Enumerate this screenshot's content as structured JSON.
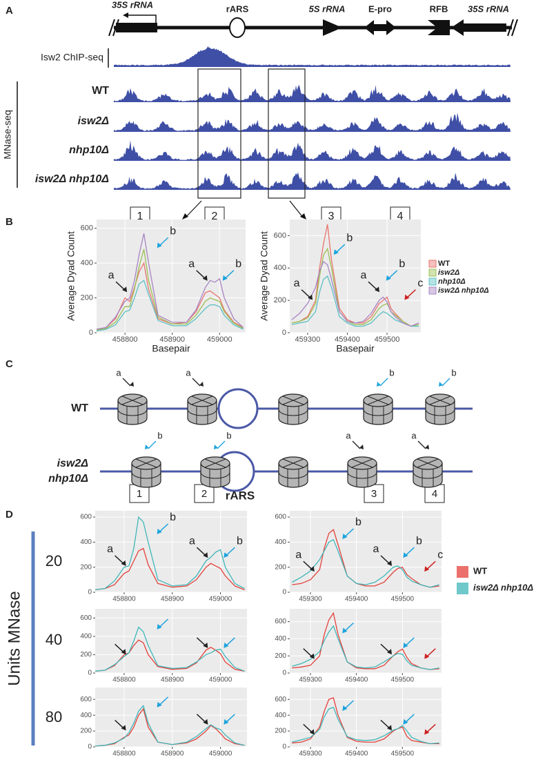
{
  "panels": [
    "A",
    "B",
    "C",
    "D"
  ],
  "panel_a": {
    "features": [
      "35S rRNA",
      "rARS",
      "5S rRNA",
      "E-pro",
      "RFB",
      "35S rRNA"
    ],
    "chip_label": "Isw2 ChIP-seq",
    "mnase_label": "MNase-seq",
    "tracks": [
      "WT",
      "isw2Δ",
      "nhp10Δ",
      "isw2Δ nhp10Δ"
    ]
  },
  "panel_b": {
    "boxes": [
      "1",
      "2",
      "3",
      "4"
    ]
  },
  "panel_c": {
    "rows": [
      {
        "label": "WT",
        "marks": [
          "a",
          "a",
          "b",
          "b"
        ]
      },
      {
        "label": "isw2Δ nhp10Δ",
        "marks": [
          "b",
          "b",
          "a",
          "a"
        ]
      }
    ],
    "boxes": [
      "1",
      "2",
      "3",
      "4"
    ],
    "origin": "rARS"
  },
  "panel_d": {
    "axis_label": "Units MNase",
    "units": [
      20,
      40,
      80
    ]
  },
  "chart_data": [
    {
      "type": "line",
      "xlabel": "Basepair",
      "ylabel": "Average Dyad Count",
      "x": [
        458740,
        458760,
        458780,
        458800,
        458810,
        458820,
        458830,
        458840,
        458850,
        458870,
        458900,
        458930,
        458950,
        458970,
        458980,
        458990,
        459000,
        459010,
        459030,
        459050
      ],
      "series": [
        {
          "name": "WT",
          "color": "#e8736c",
          "values": [
            20,
            30,
            80,
            200,
            180,
            260,
            350,
            400,
            250,
            80,
            50,
            60,
            120,
            230,
            240,
            220,
            200,
            130,
            60,
            30
          ]
        },
        {
          "name": "isw2Δ",
          "color": "#9bbf52",
          "values": [
            15,
            25,
            60,
            150,
            150,
            250,
            380,
            480,
            300,
            90,
            50,
            50,
            100,
            180,
            200,
            190,
            180,
            120,
            55,
            25
          ]
        },
        {
          "name": "nhp10Δ",
          "color": "#5bbfc4",
          "values": [
            10,
            20,
            45,
            120,
            130,
            200,
            280,
            300,
            220,
            70,
            40,
            40,
            80,
            140,
            160,
            160,
            150,
            100,
            45,
            20
          ]
        },
        {
          "name": "isw2Δ nhp10Δ",
          "color": "#a783c4",
          "values": [
            20,
            30,
            90,
            180,
            200,
            300,
            450,
            570,
            400,
            100,
            60,
            60,
            130,
            260,
            300,
            290,
            310,
            200,
            80,
            30
          ]
        }
      ],
      "xlim": [
        458740,
        459055
      ],
      "xticks": [
        458800,
        458900,
        459000
      ],
      "ylim": [
        0,
        650
      ],
      "yticks": [
        0,
        200,
        400,
        600
      ],
      "grid": true,
      "annotations": [
        "a",
        "b",
        "a",
        "b"
      ],
      "arrow_colors": [
        "#222222",
        "#1ba3dd",
        "#222222",
        "#1ba3dd"
      ]
    },
    {
      "type": "line",
      "xlabel": "Basepair",
      "ylabel": "Average Dyad Count",
      "x": [
        459260,
        459280,
        459300,
        459320,
        459330,
        459340,
        459350,
        459360,
        459380,
        459400,
        459420,
        459440,
        459460,
        459480,
        459490,
        459500,
        459510,
        459520,
        459540,
        459560,
        459580
      ],
      "series": [
        {
          "name": "WT",
          "color": "#e8736c",
          "values": [
            60,
            70,
            100,
            200,
            400,
            550,
            670,
            450,
            150,
            80,
            60,
            60,
            100,
            180,
            200,
            220,
            150,
            120,
            70,
            40,
            50
          ]
        },
        {
          "name": "isw2Δ",
          "color": "#9bbf52",
          "values": [
            60,
            70,
            90,
            180,
            350,
            480,
            520,
            400,
            130,
            70,
            50,
            50,
            80,
            150,
            170,
            180,
            130,
            110,
            70,
            40,
            50
          ]
        },
        {
          "name": "nhp10Δ",
          "color": "#5bbfc4",
          "values": [
            50,
            60,
            70,
            130,
            250,
            330,
            350,
            280,
            100,
            60,
            40,
            40,
            60,
            110,
            130,
            120,
            100,
            80,
            60,
            40,
            40
          ]
        },
        {
          "name": "isw2Δ nhp10Δ",
          "color": "#a783c4",
          "values": [
            80,
            120,
            180,
            280,
            380,
            440,
            420,
            330,
            130,
            70,
            60,
            70,
            120,
            200,
            220,
            190,
            130,
            100,
            60,
            40,
            60
          ]
        }
      ],
      "xlim": [
        459255,
        459585
      ],
      "xticks": [
        459300,
        459400,
        459500
      ],
      "ylim": [
        0,
        700
      ],
      "yticks": [
        0,
        200,
        400,
        600
      ],
      "grid": true,
      "annotations": [
        "a",
        "b",
        "a",
        "b",
        "c"
      ],
      "arrow_colors": [
        "#222222",
        "#1ba3dd",
        "#222222",
        "#1ba3dd",
        "#cc2222"
      ]
    },
    {
      "type": "line",
      "x": [
        458740,
        458760,
        458780,
        458800,
        458810,
        458820,
        458830,
        458840,
        458850,
        458870,
        458900,
        458930,
        458950,
        458970,
        458980,
        458990,
        459000,
        459010,
        459030,
        459050
      ],
      "series": [
        {
          "name": "WT",
          "color": "#e4403a",
          "values": [
            20,
            30,
            60,
            150,
            170,
            250,
            330,
            350,
            220,
            70,
            40,
            50,
            100,
            200,
            230,
            210,
            190,
            130,
            50,
            20
          ]
        },
        {
          "name": "isw2Δ nhp10Δ",
          "color": "#3fb6b8",
          "values": [
            20,
            30,
            90,
            200,
            210,
            350,
            600,
            560,
            400,
            100,
            50,
            60,
            130,
            250,
            280,
            320,
            340,
            200,
            70,
            30
          ]
        }
      ],
      "xlim": [
        458740,
        459055
      ],
      "xticks": [
        458800,
        458900,
        459000
      ],
      "ylim": [
        0,
        650
      ],
      "yticks": [
        0,
        200,
        400,
        600
      ],
      "grid": true,
      "annotations": [
        "a",
        "b",
        "a",
        "b"
      ],
      "arrow_colors": [
        "#222222",
        "#1ba3dd",
        "#222222",
        "#1ba3dd"
      ]
    },
    {
      "type": "line",
      "x": [
        459260,
        459280,
        459300,
        459320,
        459330,
        459340,
        459350,
        459360,
        459380,
        459400,
        459420,
        459440,
        459460,
        459480,
        459490,
        459500,
        459510,
        459520,
        459540,
        459560,
        459580
      ],
      "series": [
        {
          "name": "WT",
          "color": "#e4403a",
          "values": [
            60,
            70,
            100,
            180,
            350,
            470,
            500,
            380,
            130,
            70,
            50,
            50,
            80,
            160,
            190,
            200,
            140,
            110,
            60,
            40,
            50
          ]
        },
        {
          "name": "isw2Δ nhp10Δ",
          "color": "#3fb6b8",
          "values": [
            80,
            120,
            170,
            260,
            330,
            400,
            420,
            330,
            130,
            70,
            60,
            80,
            130,
            200,
            210,
            180,
            120,
            90,
            60,
            40,
            60
          ]
        }
      ],
      "xlim": [
        459255,
        459585
      ],
      "xticks": [
        459300,
        459400,
        459500
      ],
      "ylim": [
        0,
        650
      ],
      "yticks": [
        0,
        200,
        400,
        600
      ],
      "grid": true,
      "annotations": [
        "a",
        "b",
        "a",
        "b",
        "c"
      ],
      "arrow_colors": [
        "#222222",
        "#1ba3dd",
        "#222222",
        "#1ba3dd",
        "#cc2222"
      ]
    },
    {
      "type": "line",
      "x": [
        458740,
        458760,
        458780,
        458800,
        458810,
        458820,
        458830,
        458840,
        458850,
        458870,
        458900,
        458930,
        458950,
        458970,
        458980,
        458990,
        459000,
        459010,
        459030,
        459050
      ],
      "series": [
        {
          "name": "WT",
          "color": "#e4403a",
          "values": [
            20,
            30,
            80,
            200,
            220,
            300,
            360,
            330,
            200,
            70,
            40,
            50,
            110,
            250,
            280,
            250,
            210,
            120,
            40,
            20
          ]
        },
        {
          "name": "isw2Δ nhp10Δ",
          "color": "#3fb6b8",
          "values": [
            20,
            30,
            90,
            180,
            220,
            350,
            500,
            450,
            300,
            80,
            50,
            60,
            120,
            200,
            220,
            250,
            260,
            180,
            60,
            20
          ]
        }
      ],
      "xlim": [
        458740,
        459055
      ],
      "xticks": [
        458800,
        458900,
        459000
      ],
      "ylim": [
        0,
        700
      ],
      "yticks": [
        0,
        200,
        400,
        600
      ],
      "grid": true,
      "arrow_colors": [
        "#222222",
        "#1ba3dd",
        "#222222",
        "#1ba3dd"
      ]
    },
    {
      "type": "line",
      "x": [
        459260,
        459280,
        459300,
        459320,
        459330,
        459340,
        459350,
        459360,
        459380,
        459400,
        459420,
        459440,
        459460,
        459480,
        459490,
        459500,
        459510,
        459520,
        459540,
        459560,
        459580
      ],
      "series": [
        {
          "name": "WT",
          "color": "#e4403a",
          "values": [
            60,
            70,
            90,
            200,
            450,
            620,
            700,
            450,
            130,
            60,
            50,
            50,
            90,
            200,
            250,
            280,
            180,
            110,
            60,
            40,
            50
          ]
        },
        {
          "name": "isw2Δ nhp10Δ",
          "color": "#3fb6b8",
          "values": [
            80,
            110,
            160,
            250,
            380,
            480,
            550,
            400,
            130,
            70,
            60,
            70,
            130,
            200,
            230,
            220,
            140,
            90,
            60,
            40,
            60
          ]
        }
      ],
      "xlim": [
        459255,
        459585
      ],
      "xticks": [
        459300,
        459400,
        459500
      ],
      "ylim": [
        0,
        750
      ],
      "yticks": [
        0,
        200,
        400,
        600
      ],
      "grid": true,
      "arrow_colors": [
        "#222222",
        "#1ba3dd",
        "#222222",
        "#1ba3dd",
        "#cc2222"
      ]
    },
    {
      "type": "line",
      "x": [
        458740,
        458760,
        458780,
        458800,
        458810,
        458820,
        458830,
        458840,
        458850,
        458870,
        458900,
        458930,
        458950,
        458970,
        458980,
        458990,
        459000,
        459010,
        459030,
        459050
      ],
      "series": [
        {
          "name": "WT",
          "color": "#e4403a",
          "values": [
            10,
            20,
            40,
            120,
            150,
            250,
            400,
            480,
            250,
            60,
            30,
            50,
            100,
            200,
            270,
            230,
            170,
            100,
            40,
            20
          ]
        },
        {
          "name": "isw2Δ nhp10Δ",
          "color": "#3fb6b8",
          "values": [
            10,
            20,
            50,
            110,
            180,
            300,
            450,
            520,
            300,
            60,
            30,
            60,
            130,
            230,
            280,
            240,
            220,
            150,
            50,
            20
          ]
        }
      ],
      "xlim": [
        458740,
        459055
      ],
      "xticks": [
        458800,
        458900,
        459000
      ],
      "ylim": [
        0,
        750
      ],
      "yticks": [
        0,
        200,
        400,
        600
      ],
      "grid": true,
      "arrow_colors": [
        "#222222",
        "#1ba3dd",
        "#222222",
        "#1ba3dd"
      ]
    },
    {
      "type": "line",
      "x": [
        459260,
        459280,
        459300,
        459320,
        459330,
        459340,
        459350,
        459360,
        459380,
        459400,
        459420,
        459440,
        459460,
        459480,
        459490,
        459500,
        459510,
        459520,
        459540,
        459560,
        459580
      ],
      "series": [
        {
          "name": "WT",
          "color": "#e4403a",
          "values": [
            50,
            60,
            100,
            250,
            450,
            600,
            620,
            400,
            120,
            70,
            60,
            60,
            100,
            200,
            230,
            250,
            130,
            80,
            60,
            40,
            40
          ]
        },
        {
          "name": "isw2Δ nhp10Δ",
          "color": "#3fb6b8",
          "values": [
            60,
            90,
            120,
            220,
            380,
            480,
            500,
            350,
            130,
            90,
            80,
            90,
            140,
            210,
            230,
            270,
            200,
            120,
            70,
            40,
            50
          ]
        }
      ],
      "xlim": [
        459255,
        459585
      ],
      "xticks": [
        459300,
        459400,
        459500
      ],
      "ylim": [
        0,
        750
      ],
      "yticks": [
        0,
        200,
        400,
        600
      ],
      "grid": true,
      "arrow_colors": [
        "#222222",
        "#1ba3dd",
        "#222222",
        "#1ba3dd",
        "#cc2222"
      ]
    }
  ]
}
